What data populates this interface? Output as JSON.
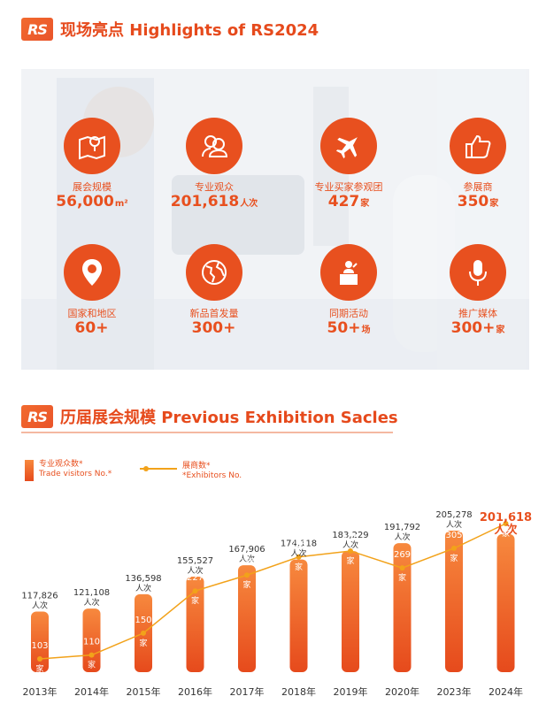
{
  "section1": {
    "logo": "RS",
    "title": "现场亮点 Highlights of RS2024"
  },
  "highlights": [
    {
      "label": "展会规模",
      "value": "56,000",
      "unit": "m²",
      "icon": "map-pin-icon"
    },
    {
      "label": "专业观众",
      "value": "201,618",
      "unit": "人次",
      "icon": "people-icon"
    },
    {
      "label": "专业买家参观团",
      "value": "427",
      "unit": "家",
      "icon": "airplane-icon"
    },
    {
      "label": "参展商",
      "value": "350",
      "unit": "家",
      "icon": "thumbs-up-icon"
    },
    {
      "label": "国家和地区",
      "value": "60+",
      "unit": "",
      "icon": "location-pin-icon"
    },
    {
      "label": "新品首发量",
      "value": "300+",
      "unit": "",
      "icon": "globe-icon"
    },
    {
      "label": "同期活动",
      "value": "50+",
      "unit": "场",
      "icon": "speaker-podium-icon"
    },
    {
      "label": "推广媒体",
      "value": "300+",
      "unit": "家",
      "icon": "microphone-icon"
    }
  ],
  "section2": {
    "logo": "RS",
    "title": "历届展会规模 Previous Exhibition Sacles"
  },
  "legend": {
    "visitors": {
      "cn": "专业观众数*",
      "en": "Trade visitors No.*"
    },
    "exhibitors": {
      "cn": "展商数*",
      "en": "*Exhibitors No."
    }
  },
  "colors": {
    "accent": "#e8501f",
    "bar_top": "#f7893e",
    "bar_bottom": "#e64a1c",
    "line": "#f2a21a"
  },
  "chart_data": {
    "type": "bar",
    "categories": [
      "2013年",
      "2014年",
      "2015年",
      "2016年",
      "2017年",
      "2018年",
      "2019年",
      "2020年",
      "2023年",
      "2024年"
    ],
    "series": [
      {
        "name": "专业观众数* Trade visitors No.*",
        "type": "bar",
        "values": [
          117826,
          121108,
          136598,
          155527,
          167906,
          174118,
          183229,
          191792,
          205278,
          201618
        ],
        "labels": [
          "117,826",
          "121,108",
          "136,598",
          "155,527",
          "167,906",
          "174,118",
          "183,229",
          "191,792",
          "205,278",
          "201,618"
        ],
        "unit": "人次"
      },
      {
        "name": "展商数* *Exhibitors No.",
        "type": "line",
        "values": [
          103,
          110,
          150,
          227,
          256,
          289,
          300,
          269,
          305,
          350
        ],
        "unit": "家"
      }
    ]
  }
}
